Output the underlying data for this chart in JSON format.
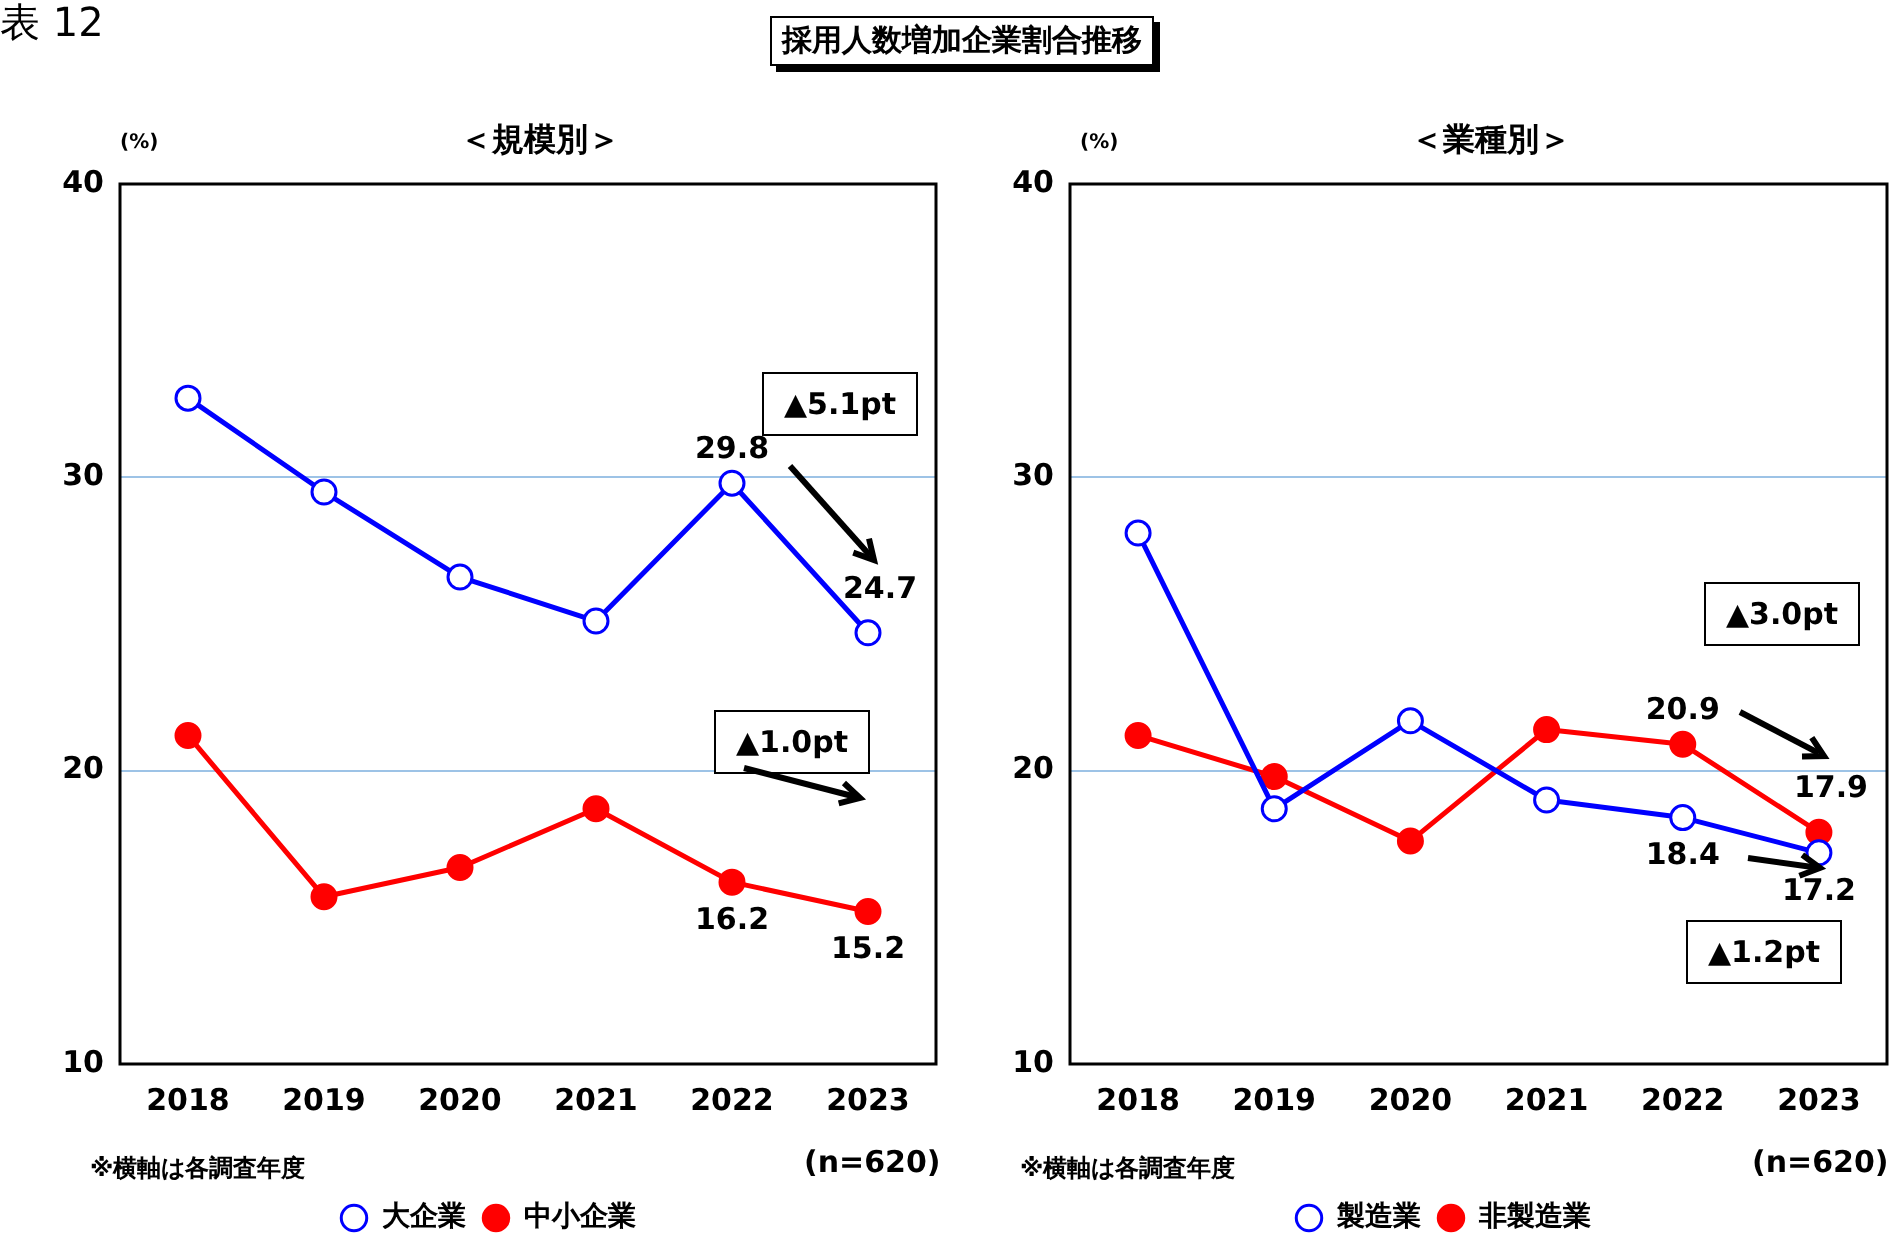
{
  "chart_data": [
    {
      "type": "line",
      "title": "採用人数増加企業割合推移",
      "subtitle": "＜規模別＞",
      "ylabel": "(%)",
      "categories": [
        "2018",
        "2019",
        "2020",
        "2021",
        "2022",
        "2023"
      ],
      "series": [
        {
          "name": "大企業",
          "color": "#0000ff",
          "values": [
            32.7,
            29.5,
            26.6,
            25.1,
            29.8,
            24.7
          ],
          "value_labels": [
            null,
            null,
            null,
            null,
            "29.8",
            "24.7"
          ]
        },
        {
          "name": "中小企業",
          "color": "#ff0000",
          "values": [
            21.2,
            15.7,
            16.7,
            18.7,
            16.2,
            15.2
          ],
          "value_labels": [
            null,
            null,
            null,
            null,
            "16.2",
            "15.2"
          ]
        }
      ],
      "ylim": [
        10,
        40
      ],
      "yticks": [
        10,
        20,
        30,
        40
      ],
      "grid": "y",
      "legend": "bottom",
      "marker": "circle",
      "line_style": "solid",
      "annotations": [
        "表 12",
        "▲5.1pt",
        "▲1.0pt",
        "※横軸は各調査年度",
        "(n=620)"
      ]
    },
    {
      "type": "line",
      "subtitle": "＜業種別＞",
      "ylabel": "(%)",
      "categories": [
        "2018",
        "2019",
        "2020",
        "2021",
        "2022",
        "2023"
      ],
      "series": [
        {
          "name": "製造業",
          "color": "#0000ff",
          "values": [
            28.1,
            18.7,
            21.7,
            19.0,
            18.4,
            17.2
          ],
          "value_labels": [
            null,
            null,
            null,
            null,
            "18.4",
            "17.2"
          ]
        },
        {
          "name": "非製造業",
          "color": "#ff0000",
          "values": [
            21.2,
            19.8,
            17.6,
            21.4,
            20.9,
            17.9
          ],
          "value_labels": [
            null,
            null,
            null,
            null,
            "20.9",
            "17.9"
          ]
        }
      ],
      "ylim": [
        10,
        40
      ],
      "yticks": [
        10,
        20,
        30,
        40
      ],
      "grid": "y",
      "legend": "bottom",
      "marker": "circle",
      "line_style": "solid",
      "annotations": [
        "▲3.0pt",
        "▲1.2pt",
        "※横軸は各調査年度",
        "(n=620)"
      ]
    }
  ]
}
